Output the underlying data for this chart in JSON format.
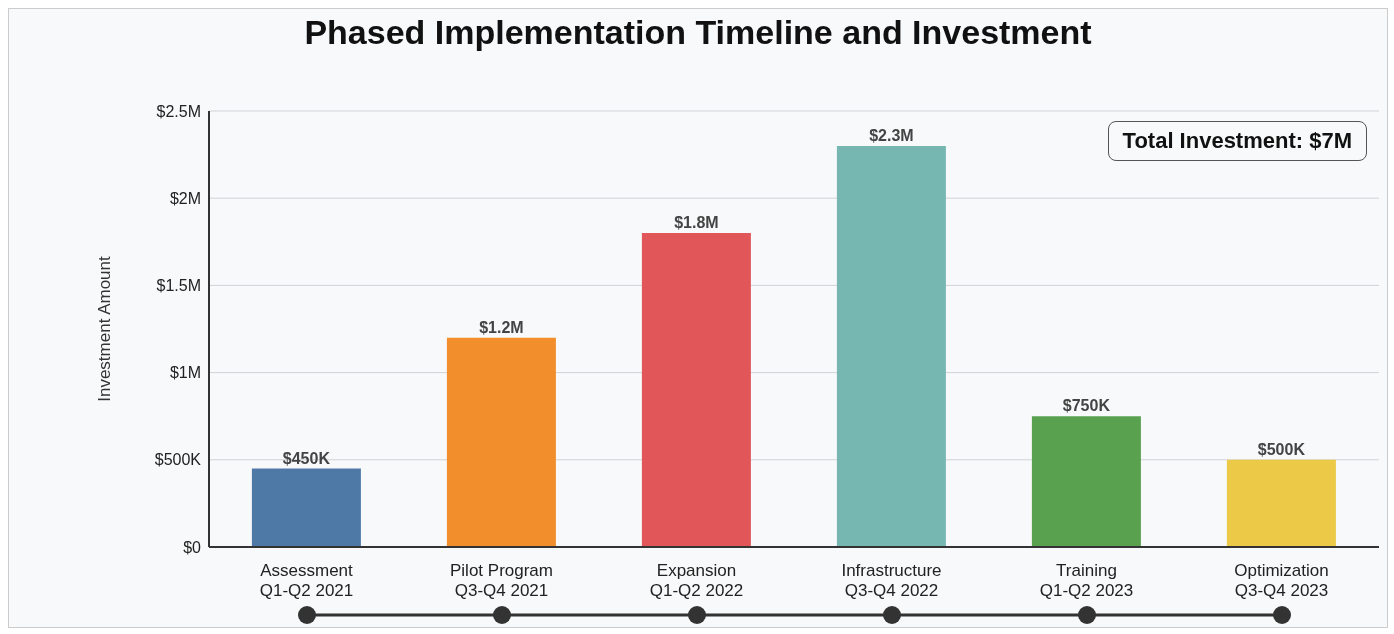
{
  "chart_data": {
    "type": "bar",
    "title": "Phased Implementation Timeline and Investment",
    "ylabel": "Investment Amount",
    "categories": [
      "Assessment\nQ1-Q2 2021",
      "Pilot Program\nQ3-Q4 2021",
      "Expansion\nQ1-Q2 2022",
      "Infrastructure\nQ3-Q4 2022",
      "Training\nQ1-Q2 2023",
      "Optimization\nQ3-Q4 2023"
    ],
    "values": [
      450000,
      1200000,
      1800000,
      2300000,
      750000,
      500000
    ],
    "colors": [
      "#4e79a7",
      "#f28e2b",
      "#e15759",
      "#76b7b2",
      "#59a14f",
      "#edc948"
    ],
    "value_labels": [
      "$450K",
      "$1.2M",
      "$1.8M",
      "$2.3M",
      "$750K",
      "$500K"
    ],
    "ylim": [
      0,
      2500000
    ],
    "yticks": [
      {
        "value": 0,
        "label": "$0"
      },
      {
        "value": 500000,
        "label": "$500K"
      },
      {
        "value": 1000000,
        "label": "$1M"
      },
      {
        "value": 1500000,
        "label": "$1.5M"
      },
      {
        "value": 2000000,
        "label": "$2M"
      },
      {
        "value": 2500000,
        "label": "$2.5M"
      }
    ],
    "grid": "y",
    "annotations": [
      "Total Investment: $7M"
    ]
  }
}
